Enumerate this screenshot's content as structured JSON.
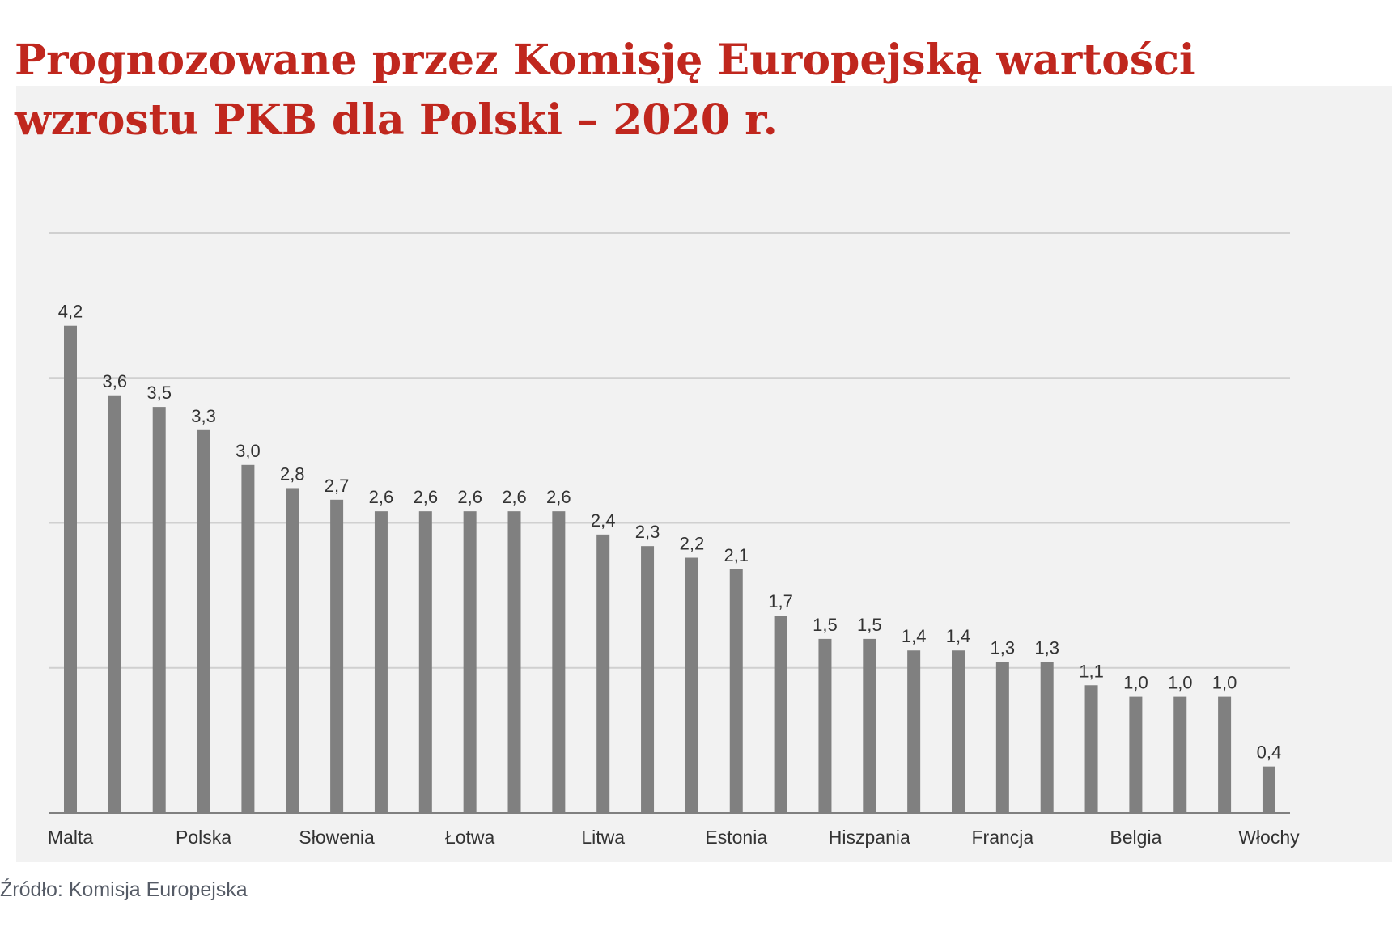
{
  "title": {
    "line1": "Prognozowane przez Komisję Europejską wartości",
    "line2": "wzrostu PKB dla Polski – 2020 r."
  },
  "source": "Źródło: Komisja Europejska",
  "colors": {
    "title": "#c0271e",
    "bar": "#808080",
    "grid": "#d0d0d0",
    "axis": "#808080",
    "panel": "#f2f2f2",
    "text": "#333333"
  },
  "chart_data": {
    "type": "bar",
    "values": [
      4.2,
      3.6,
      3.5,
      3.3,
      3.0,
      2.8,
      2.7,
      2.6,
      2.6,
      2.6,
      2.6,
      2.6,
      2.4,
      2.3,
      2.2,
      2.1,
      1.7,
      1.5,
      1.5,
      1.4,
      1.4,
      1.3,
      1.3,
      1.1,
      1.0,
      1.0,
      1.0,
      0.4
    ],
    "value_labels": [
      "4,2",
      "3,6",
      "3,5",
      "3,3",
      "3,0",
      "2,8",
      "2,7",
      "2,6",
      "2,6",
      "2,6",
      "2,6",
      "2,6",
      "2,4",
      "2,3",
      "2,2",
      "2,1",
      "1,7",
      "1,5",
      "1,5",
      "1,4",
      "1,4",
      "1,3",
      "1,3",
      "1,1",
      "1,0",
      "1,0",
      "1,0",
      "0,4"
    ],
    "category_labels": [
      {
        "index": 0,
        "label": "Malta"
      },
      {
        "index": 3,
        "label": "Polska"
      },
      {
        "index": 6,
        "label": "Słowenia"
      },
      {
        "index": 9,
        "label": "Łotwa"
      },
      {
        "index": 12,
        "label": "Litwa"
      },
      {
        "index": 15,
        "label": "Estonia"
      },
      {
        "index": 18,
        "label": "Hiszpania"
      },
      {
        "index": 21,
        "label": "Francja"
      },
      {
        "index": 24,
        "label": "Belgia"
      },
      {
        "index": 27,
        "label": "Włochy"
      }
    ],
    "ylim": [
      0,
      5
    ],
    "gridlines": [
      1.25,
      2.5,
      3.75,
      5.0
    ],
    "grid": true,
    "legend": false
  }
}
